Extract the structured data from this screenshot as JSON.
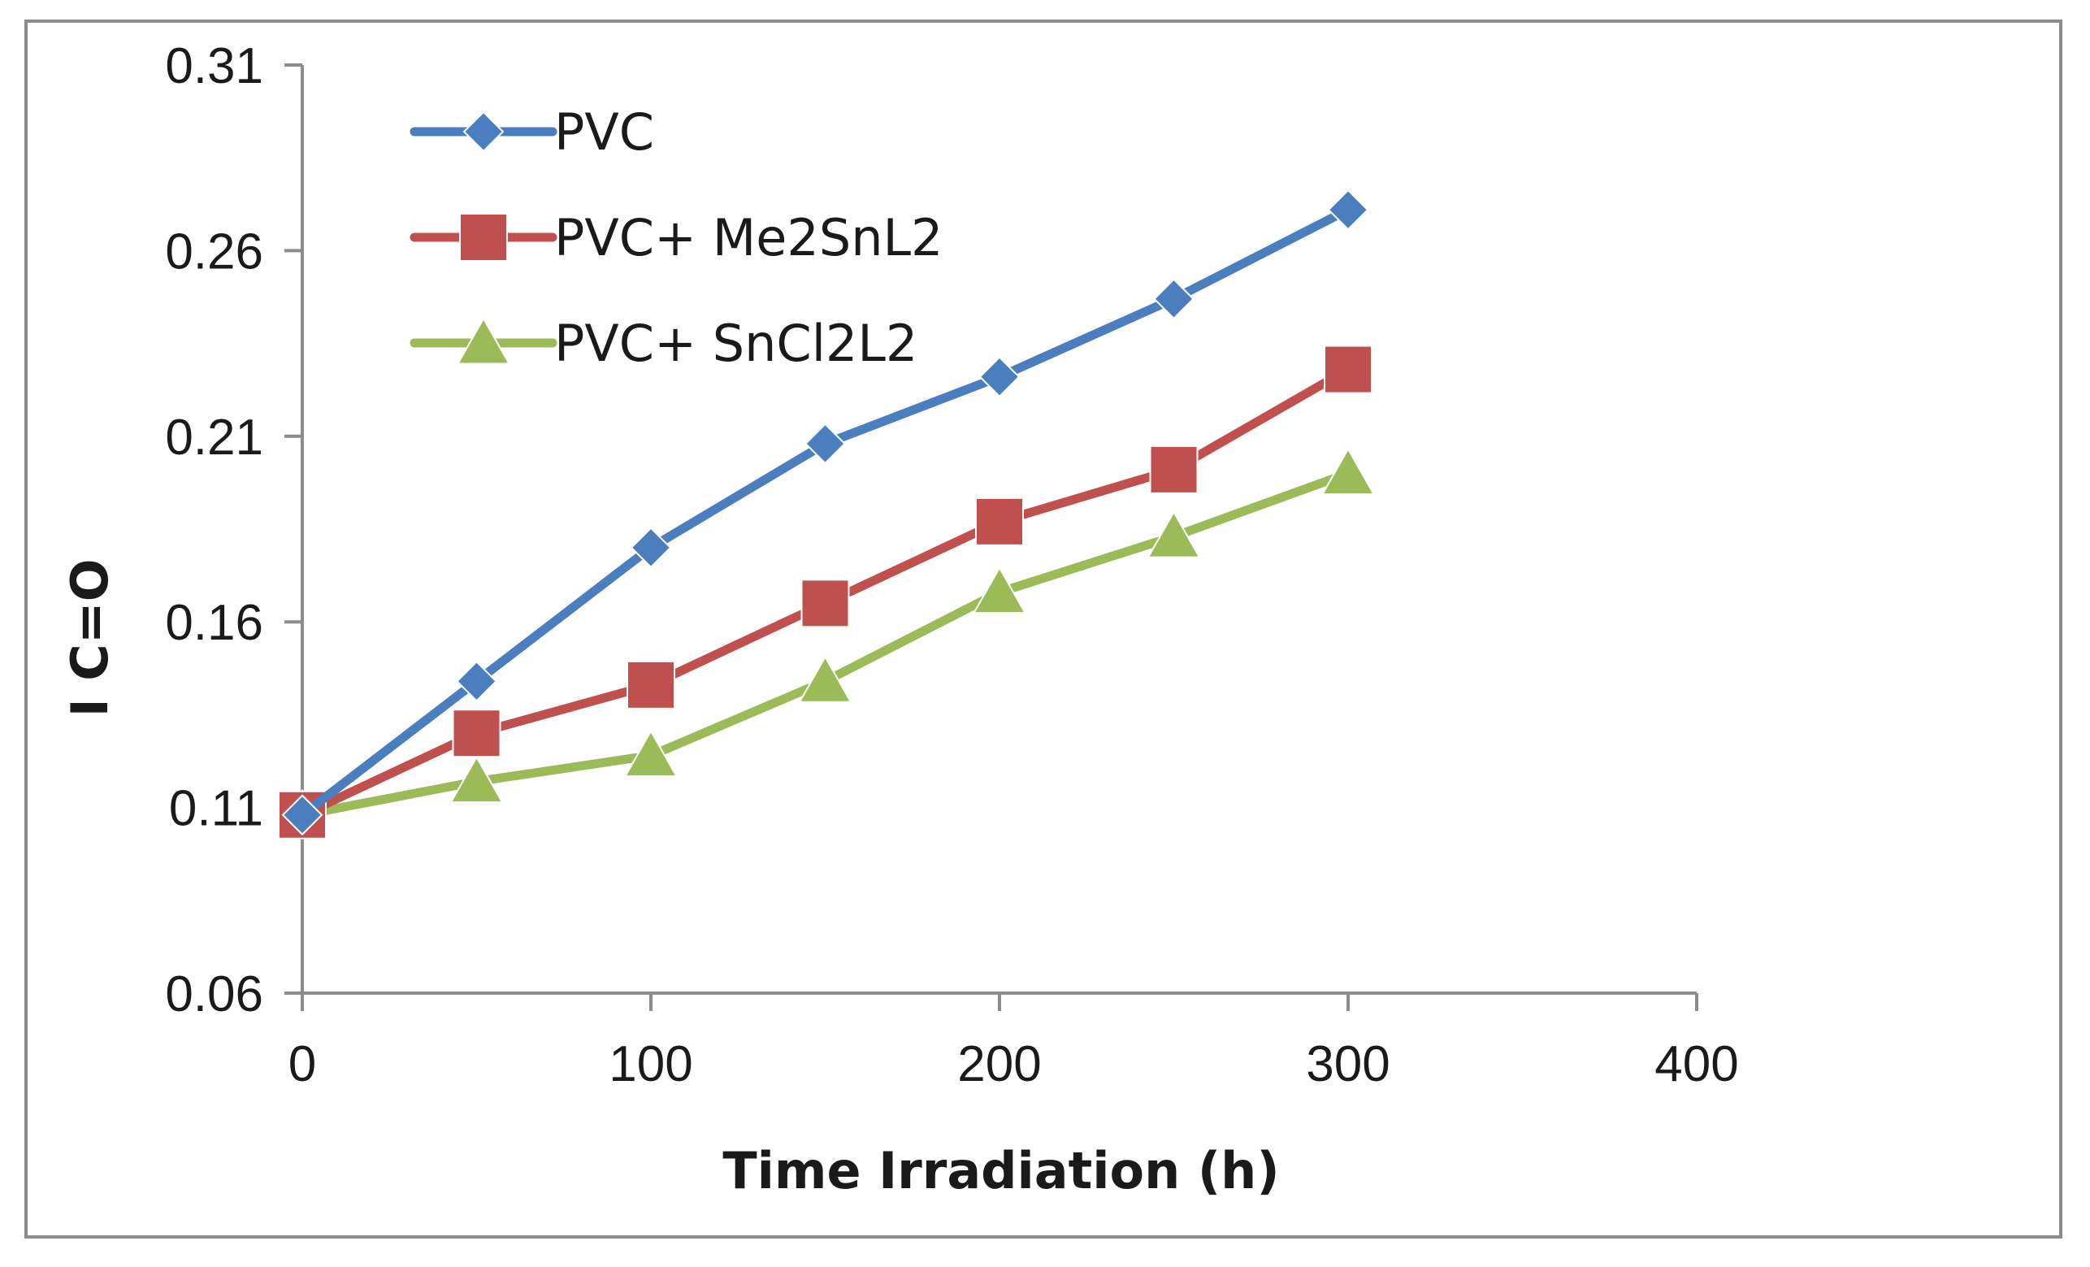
{
  "chart_data": {
    "type": "line",
    "title": "",
    "xlabel": "Time Irradiation (h)",
    "ylabel": "I C=O",
    "xlim": [
      0,
      400
    ],
    "ylim": [
      0.06,
      0.31
    ],
    "x_ticks": [
      "0",
      "100",
      "200",
      "300",
      "400"
    ],
    "y_ticks": [
      "0.06",
      "0.11",
      "0.16",
      "0.21",
      "0.26",
      "0.31"
    ],
    "grid": false,
    "legend_position": "top-left",
    "x": [
      0,
      50,
      100,
      150,
      200,
      250,
      300
    ],
    "series": [
      {
        "name": "PVC",
        "marker": "diamond",
        "color": "#4a7ebf",
        "values": [
          0.108,
          0.144,
          0.18,
          0.208,
          0.226,
          0.247,
          0.271
        ]
      },
      {
        "name": "PVC+ Me2SnL2",
        "marker": "square",
        "color": "#c0504d",
        "values": [
          0.108,
          0.13,
          0.143,
          0.165,
          0.187,
          0.201,
          0.228
        ]
      },
      {
        "name": "PVC+  SnCl2L2",
        "marker": "triangle",
        "color": "#9bbb59",
        "values": [
          0.108,
          0.117,
          0.124,
          0.144,
          0.168,
          0.183,
          0.2
        ]
      }
    ]
  }
}
